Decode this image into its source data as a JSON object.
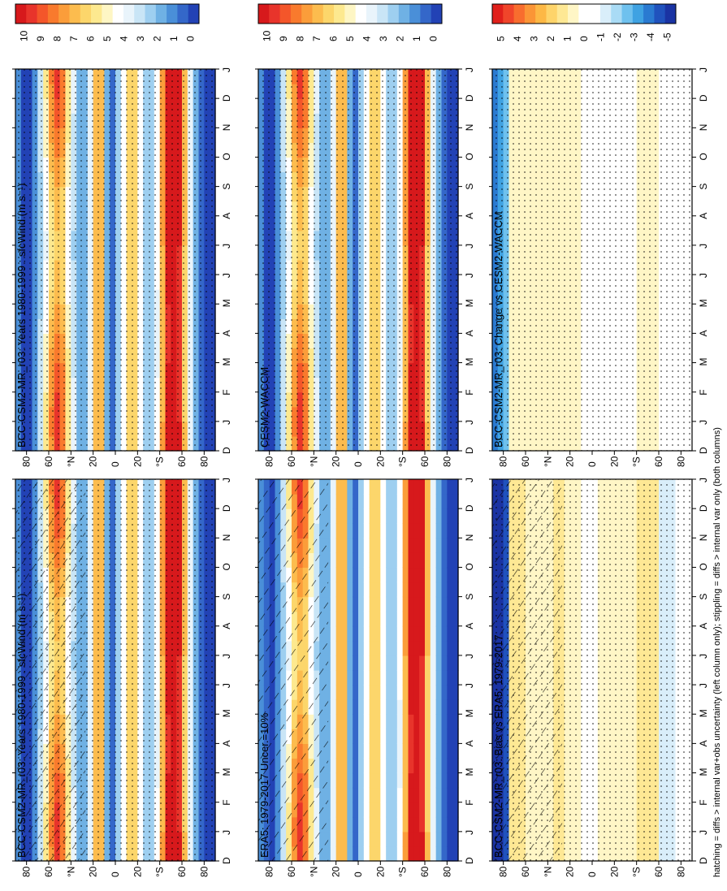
{
  "footnote": "hatching = diffs > internal var+obs uncertainty (left column only); stippling = diffs > internal var only (both columns)",
  "months": [
    "D",
    "J",
    "F",
    "M",
    "A",
    "M",
    "J",
    "J",
    "A",
    "S",
    "O",
    "N",
    "D",
    "J"
  ],
  "lat_ticks": [
    "80",
    "60",
    "°N",
    "20",
    "0",
    "20",
    "°S",
    "60",
    "80"
  ],
  "colors": {
    "abs_scale": [
      "#d7191c",
      "#e8342b",
      "#f4562a",
      "#f97a2d",
      "#fb9d3a",
      "#fcbc4e",
      "#fcd66b",
      "#fde98f",
      "#fef6c4",
      "#ffffff",
      "#e9f4fb",
      "#c9e5f6",
      "#9ecff0",
      "#6fb1e4",
      "#4a8fd8",
      "#3467c9",
      "#2242b5"
    ],
    "diff_scale": [
      "#e0201b",
      "#f0452a",
      "#f86d2e",
      "#fb9536",
      "#fdb845",
      "#fed46a",
      "#fee894",
      "#fff6c6",
      "#ffffff",
      "#ffffff",
      "#d9eefa",
      "#a9dbf5",
      "#6fc1ee",
      "#3fa2e2",
      "#2a7ad1",
      "#2052bd",
      "#1a33a3"
    ]
  },
  "panels": [
    {
      "title": "BCC-CSM2-MR_r03: Years 1980-1999 : sfcWind (m s⁻¹)",
      "colorbar": [
        "10",
        "9",
        "8",
        "7",
        "6",
        "5",
        "4",
        "3",
        "2",
        "1",
        "0"
      ],
      "kind": "abs"
    },
    {
      "title": "BCC-CSM2-MR_r03: Years 1980-1999 : sfcWind (m s⁻¹)",
      "colorbar": [
        "10",
        "9",
        "8",
        "7",
        "6",
        "5",
        "4",
        "3",
        "2",
        "1",
        "0"
      ],
      "kind": "abs"
    },
    {
      "title": "ERA5: 1979-2017 Uncer.=10%",
      "colorbar": [
        "10",
        "9",
        "8",
        "7",
        "6",
        "5",
        "4",
        "3",
        "2",
        "1",
        "0"
      ],
      "kind": "abs"
    },
    {
      "title": "CESM2-WACCM",
      "colorbar": [
        "10",
        "9",
        "8",
        "7",
        "6",
        "5",
        "4",
        "3",
        "2",
        "1",
        "0"
      ],
      "kind": "abs"
    },
    {
      "title": "BCC-CSM2-MR_r03: Bias vs ERA5: 1979-2017",
      "colorbar": [
        "5",
        "4",
        "3",
        "2",
        "1",
        "0",
        "-1",
        "-2",
        "-3",
        "-4",
        "-5"
      ],
      "kind": "diff"
    },
    {
      "title": "BCC-CSM2-MR_r03: Change vs CESM2-WACCM",
      "colorbar": [
        "5",
        "4",
        "3",
        "2",
        "1",
        "0",
        "-1",
        "-2",
        "-3",
        "-4",
        "-5"
      ],
      "kind": "diff"
    }
  ],
  "chart_data": {
    "type": "heatmap",
    "variable": "sfcWind",
    "units": "m s⁻¹",
    "x": [
      "D",
      "J",
      "F",
      "M",
      "A",
      "M",
      "J",
      "J",
      "A",
      "S",
      "O",
      "N",
      "D",
      "J"
    ],
    "y": [
      "80",
      "60",
      "°N",
      "20",
      "0",
      "20",
      "°S",
      "60",
      "80"
    ],
    "abs_colorbar": [
      10,
      9,
      8,
      7,
      6,
      5,
      4,
      3,
      2,
      1,
      0
    ],
    "diff_colorbar": [
      5,
      4,
      3,
      2,
      1,
      0,
      -1,
      -2,
      -3,
      -4,
      -5
    ],
    "panels": [
      {
        "name": "BCC-CSM2-MR_r03: Years 1980-1999 : sfcWind (m s⁻¹)",
        "kind": "abs",
        "hatching": true,
        "stippling": true
      },
      {
        "name": "BCC-CSM2-MR_r03: Years 1980-1999 : sfcWind (m s⁻¹)",
        "kind": "abs",
        "hatching": false,
        "stippling": true
      },
      {
        "name": "ERA5: 1979-2017 Uncer.=10%",
        "kind": "abs",
        "hatching": true,
        "stippling": false
      },
      {
        "name": "CESM2-WACCM",
        "kind": "abs",
        "hatching": false,
        "stippling": true
      },
      {
        "name": "BCC-CSM2-MR_r03: Bias vs ERA5: 1979-2017",
        "kind": "diff",
        "hatching": true,
        "stippling": true
      },
      {
        "name": "BCC-CSM2-MR_r03: Change vs CESM2-WACCM",
        "kind": "diff",
        "hatching": false,
        "stippling": true
      }
    ]
  }
}
